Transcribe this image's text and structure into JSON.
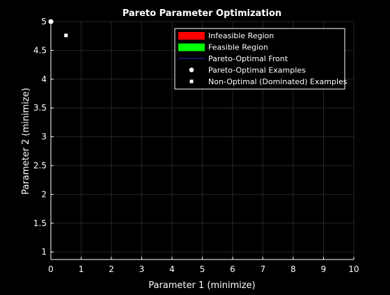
{
  "chart_data": {
    "type": "scatter",
    "title": "Pareto Parameter Optimization",
    "xlabel": "Parameter 1 (minimize)",
    "ylabel": "Parameter 2 (minimize)",
    "xlim": [
      0,
      10
    ],
    "ylim": [
      0.87,
      5
    ],
    "xticks": [
      0,
      1,
      2,
      3,
      4,
      5,
      6,
      7,
      8,
      9,
      10
    ],
    "yticks": [
      1,
      1.5,
      2,
      2.5,
      3,
      3.5,
      4,
      4.5,
      5
    ],
    "ytick_labels": [
      "1",
      "1.5",
      "2",
      "2.5",
      "3",
      "3.5",
      "4",
      "4.5",
      "5"
    ],
    "grid": true,
    "legend_position": "top-right",
    "legend": [
      {
        "label": "Infeasible Region",
        "marker": "patch",
        "color": "#ff0000"
      },
      {
        "label": "Feasible Region",
        "marker": "patch",
        "color": "#00ff00"
      },
      {
        "label": "Pareto-Optimal Front",
        "marker": "line",
        "color": "#1a1a8c"
      },
      {
        "label": "Pareto-Optimal Examples",
        "marker": "circle",
        "color": "#ffffff"
      },
      {
        "label": "Non-Optimal (Dominated) Examples",
        "marker": "square",
        "color": "#ffffff"
      }
    ],
    "series": [
      {
        "name": "Pareto-Optimal Examples",
        "marker": "circle",
        "color": "#ffffff",
        "points": [
          {
            "x": 0,
            "y": 5
          }
        ]
      },
      {
        "name": "Non-Optimal (Dominated) Examples",
        "marker": "square",
        "color": "#ffffff",
        "points": [
          {
            "x": 0.5,
            "y": 4.76
          }
        ]
      }
    ]
  },
  "colors": {
    "background": "#000000",
    "axes": "#ffffff",
    "grid": "#262626",
    "text": "#ffffff"
  }
}
